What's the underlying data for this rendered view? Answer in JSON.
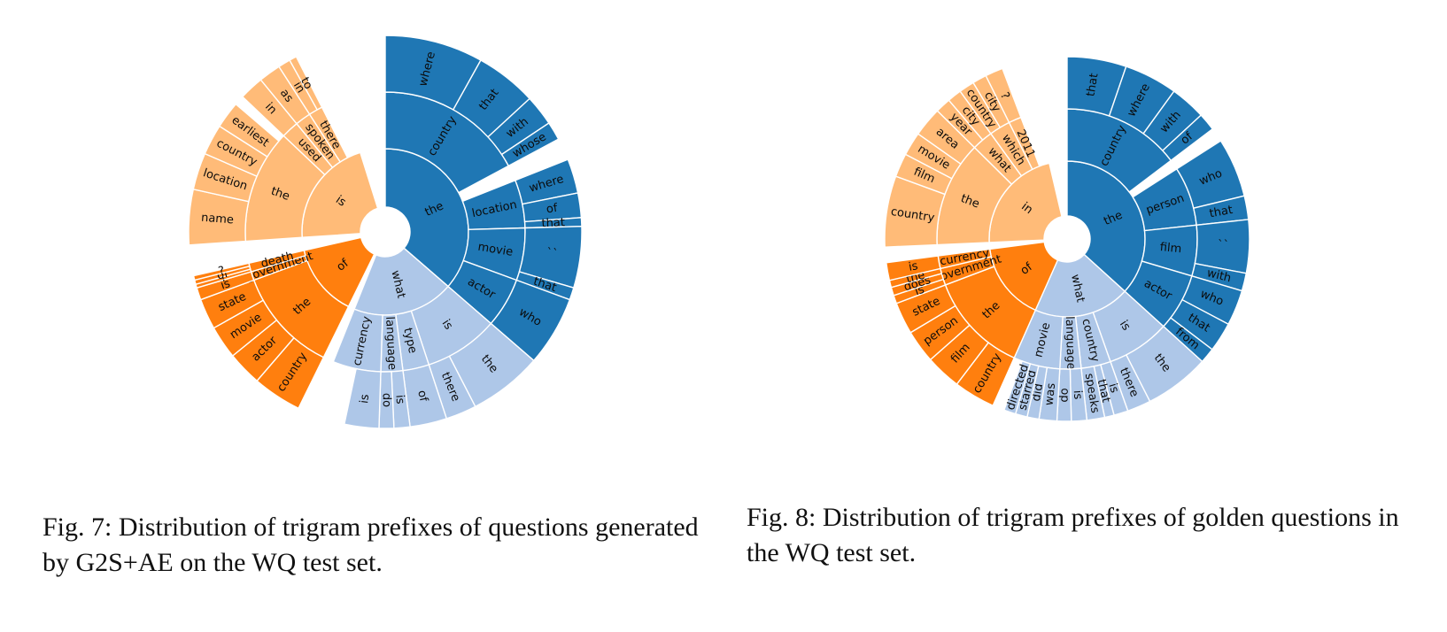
{
  "colors": {
    "what": "#aec7e8",
    "the": "#1f77b4",
    "is": "#ffbb78",
    "in": "#ffbb78",
    "of": "#ff7f0e",
    "background": "#ffffff"
  },
  "chart_data": [
    {
      "type": "sunburst",
      "caption": "Fig. 7: Distribution of trigram prefixes of questions generated by G2S+AE on the WQ test set.",
      "start_angle_deg": 0,
      "sectors": [
        {
          "label": "the",
          "value": 36,
          "color": "the",
          "children": [
            {
              "label": "country",
              "value": 17,
              "children": [
                {
                  "label": "where",
                  "value": 8
                },
                {
                  "label": "that",
                  "value": 5
                },
                {
                  "label": "with",
                  "value": 2.5
                },
                {
                  "label": "whose",
                  "value": 1.5
                }
              ]
            },
            {
              "label": "gap",
              "value": 1.8,
              "gap": true
            },
            {
              "label": "location",
              "value": 5.5,
              "children": [
                {
                  "label": "where",
                  "value": 2.8
                },
                {
                  "label": "of",
                  "value": 2
                },
                {
                  "label": "that",
                  "value": 0.7
                }
              ]
            },
            {
              "label": "movie",
              "value": 6,
              "children": [
                {
                  "label": "``",
                  "value": 5
                },
                {
                  "label": "that",
                  "value": 1
                }
              ]
            },
            {
              "label": "actor",
              "value": 5.7,
              "children": [
                {
                  "label": "who",
                  "value": 5.7
                }
              ]
            }
          ]
        },
        {
          "label": "what",
          "value": 19.5,
          "color": "what",
          "children": [
            {
              "label": "is",
              "value": 8.5,
              "children": [
                {
                  "label": "the",
                  "value": 6
                },
                {
                  "label": "there",
                  "value": 2.5
                }
              ]
            },
            {
              "label": "type",
              "value": 3,
              "children": [
                {
                  "label": "of",
                  "value": 3
                }
              ]
            },
            {
              "label": "language",
              "value": 2.5,
              "children": [
                {
                  "label": "is",
                  "value": 1.3
                },
                {
                  "label": "do",
                  "value": 1.2
                }
              ]
            },
            {
              "label": "currency",
              "value": 5.5,
              "children": [
                {
                  "label": "is",
                  "value": 2.8
                },
                {
                  "label": "gap",
                  "value": 2.7,
                  "gap": true
                }
              ]
            }
          ]
        },
        {
          "label": "gap",
          "value": 1.2,
          "gap": true
        },
        {
          "label": "of",
          "value": 14,
          "color": "of",
          "children": [
            {
              "label": "the",
              "value": 12,
              "children": [
                {
                  "label": "country",
                  "value": 4
                },
                {
                  "label": "actor",
                  "value": 2.8
                },
                {
                  "label": "movie",
                  "value": 2.7
                },
                {
                  "label": "state",
                  "value": 2.5
                }
              ]
            },
            {
              "label": "government",
              "value": 1,
              "children": [
                {
                  "label": "is",
                  "value": 1
                }
              ]
            },
            {
              "label": "death",
              "value": 1,
              "children": [
                {
                  "label": "?",
                  "value": 0.3
                },
                {
                  "label": "of",
                  "value": 0.35
                },
                {
                  "label": "?",
                  "value": 0.35
                }
              ]
            }
          ]
        },
        {
          "label": "gap",
          "value": 2.5,
          "gap": true
        },
        {
          "label": "is",
          "value": 21,
          "color": "is",
          "children": [
            {
              "label": "the",
              "value": 13,
              "children": [
                {
                  "label": "name",
                  "value": 4.5
                },
                {
                  "label": "location",
                  "value": 3
                },
                {
                  "label": "country",
                  "value": 2.5
                },
                {
                  "label": "earliest",
                  "value": 2.2
                },
                {
                  "label": "gap",
                  "value": 0.8,
                  "gap": true
                }
              ]
            },
            {
              "label": "used",
              "value": 2,
              "children": [
                {
                  "label": "in",
                  "value": 2
                }
              ]
            },
            {
              "label": "spoken",
              "value": 1.8,
              "children": [
                {
                  "label": "as",
                  "value": 1.8
                }
              ]
            },
            {
              "label": "there",
              "value": 1.6,
              "children": [
                {
                  "label": "in",
                  "value": 1
                },
                {
                  "label": "to",
                  "value": 0.6
                }
              ]
            },
            {
              "label": "gap",
              "value": 2.6,
              "gap": true
            }
          ]
        },
        {
          "label": "gap",
          "value": 4.8,
          "gap": true
        }
      ]
    },
    {
      "type": "sunburst",
      "caption": "Fig. 8: Distribution of trigram prefixes of golden questions in the WQ test set.",
      "start_angle_deg": 0,
      "sectors": [
        {
          "label": "the",
          "value": 35,
          "color": "the",
          "children": [
            {
              "label": "country",
              "value": 14,
              "children": [
                {
                  "label": "that",
                  "value": 5
                },
                {
                  "label": "where",
                  "value": 4.5
                },
                {
                  "label": "with",
                  "value": 3
                },
                {
                  "label": "of",
                  "value": 1.5
                }
              ]
            },
            {
              "label": "gap",
              "value": 1.2,
              "gap": true
            },
            {
              "label": "person",
              "value": 7,
              "children": [
                {
                  "label": "who",
                  "value": 5
                },
                {
                  "label": "that",
                  "value": 2
                }
              ]
            },
            {
              "label": "film",
              "value": 6,
              "children": [
                {
                  "label": "``",
                  "value": 4.5
                },
                {
                  "label": "with",
                  "value": 1.5
                }
              ]
            },
            {
              "label": "actor",
              "value": 6.8,
              "children": [
                {
                  "label": "who",
                  "value": 3
                },
                {
                  "label": "that",
                  "value": 2.5
                },
                {
                  "label": "from",
                  "value": 1.3
                }
              ]
            }
          ]
        },
        {
          "label": "what",
          "value": 19,
          "color": "what",
          "children": [
            {
              "label": "is",
              "value": 7.5,
              "children": [
                {
                  "label": "the",
                  "value": 5.5
                },
                {
                  "label": "there",
                  "value": 2
                }
              ]
            },
            {
              "label": "country",
              "value": 3.5,
              "children": [
                {
                  "label": "is",
                  "value": 1.2
                },
                {
                  "label": "that",
                  "value": 0.8
                },
                {
                  "label": "speaks",
                  "value": 1.5
                }
              ]
            },
            {
              "label": "language",
              "value": 2.5,
              "children": [
                {
                  "label": "is",
                  "value": 1.3
                },
                {
                  "label": "do",
                  "value": 1.2
                }
              ]
            },
            {
              "label": "movie",
              "value": 5.5,
              "children": [
                {
                  "label": "was",
                  "value": 1.5
                },
                {
                  "label": "did",
                  "value": 1
                },
                {
                  "label": "starred",
                  "value": 1
                },
                {
                  "label": "directed",
                  "value": 1
                },
                {
                  "label": "gap",
                  "value": 1,
                  "gap": true
                }
              ]
            }
          ]
        },
        {
          "label": "of",
          "value": 15.5,
          "color": "of",
          "children": [
            {
              "label": "the",
              "value": 12,
              "children": [
                {
                  "label": "country",
                  "value": 3.5
                },
                {
                  "label": "film",
                  "value": 3
                },
                {
                  "label": "person",
                  "value": 2.8
                },
                {
                  "label": "state",
                  "value": 2.7
                }
              ]
            },
            {
              "label": "government",
              "value": 2,
              "children": [
                {
                  "label": "is",
                  "value": 0.7
                },
                {
                  "label": "does",
                  "value": 0.7
                },
                {
                  "label": "the",
                  "value": 0.6
                }
              ]
            },
            {
              "label": "currency",
              "value": 1.5,
              "children": [
                {
                  "label": "is",
                  "value": 1.5
                }
              ]
            }
          ]
        },
        {
          "label": "gap",
          "value": 1.3,
          "gap": true
        },
        {
          "label": "in",
          "value": 21,
          "color": "in",
          "children": [
            {
              "label": "the",
              "value": 12.5,
              "children": [
                {
                  "label": "country",
                  "value": 6
                },
                {
                  "label": "film",
                  "value": 2
                },
                {
                  "label": "movie",
                  "value": 2
                },
                {
                  "label": "area",
                  "value": 2.5
                }
              ]
            },
            {
              "label": "what",
              "value": 2.5,
              "children": [
                {
                  "label": "year",
                  "value": 1.3
                },
                {
                  "label": "city",
                  "value": 1.2
                }
              ]
            },
            {
              "label": "which",
              "value": 2.5,
              "children": [
                {
                  "label": "country",
                  "value": 1.3
                },
                {
                  "label": "city",
                  "value": 1.2
                }
              ]
            },
            {
              "label": "2011",
              "value": 1.5,
              "children": [
                {
                  "label": "?",
                  "value": 1.5
                }
              ]
            },
            {
              "label": "gap",
              "value": 2,
              "gap": true
            }
          ]
        },
        {
          "label": "gap",
          "value": 3.5,
          "gap": true
        }
      ]
    }
  ]
}
